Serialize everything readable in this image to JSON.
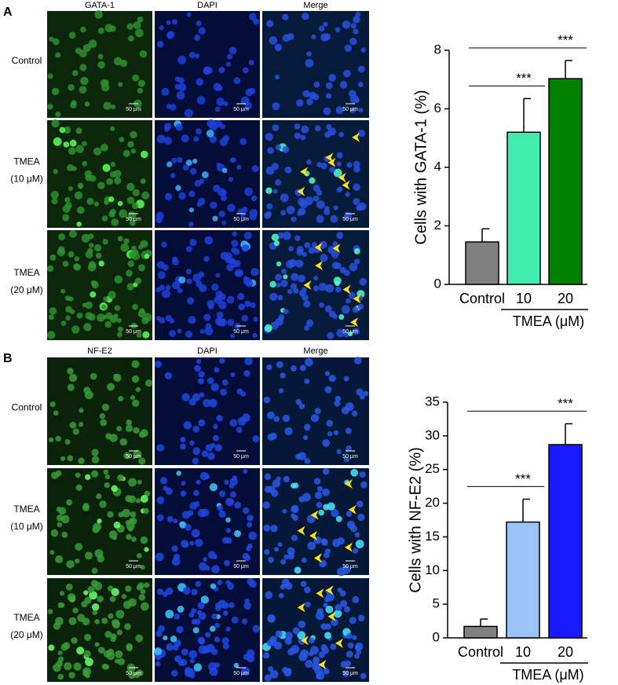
{
  "figure": {
    "panels": [
      {
        "letter": "A",
        "columns": [
          "GATA-1",
          "DAPI",
          "Merge"
        ],
        "rows": [
          [
            "Control"
          ],
          [
            "TMEA",
            "(10 μM)"
          ],
          [
            "TMEA",
            "(20 μM)"
          ]
        ],
        "scale_bar": "50 μm"
      },
      {
        "letter": "B",
        "columns": [
          "NF-E2",
          "DAPI",
          "Merge"
        ],
        "rows": [
          [
            "Control"
          ],
          [
            "TMEA",
            "(10 μM)"
          ],
          [
            "TMEA",
            "(20 μM)"
          ]
        ],
        "scale_bar": "50 μm"
      }
    ]
  },
  "chart_data": [
    {
      "type": "bar",
      "y_label": "Cells with GATA-1 (%)",
      "categories": [
        "Control",
        "10",
        "20"
      ],
      "group_label": "TMEA (μM)",
      "values": [
        1.45,
        5.2,
        7.03
      ],
      "errors": [
        0.45,
        1.15,
        0.62
      ],
      "colors": [
        "#808080",
        "#40ebb0",
        "#008000"
      ],
      "ylim": [
        0,
        8
      ],
      "yticks": [
        0,
        2,
        4,
        6,
        8
      ],
      "annotations": [
        "***",
        "***"
      ]
    },
    {
      "type": "bar",
      "y_label": "Cells with NF-E2 (%)",
      "categories": [
        "Control",
        "10",
        "20"
      ],
      "group_label": "TMEA (μM)",
      "values": [
        1.7,
        17.2,
        28.7
      ],
      "errors": [
        1.1,
        3.4,
        3.1
      ],
      "colors": [
        "#808080",
        "#9cc3f5",
        "#1a1aff"
      ],
      "ylim": [
        0,
        35
      ],
      "yticks": [
        0,
        5,
        10,
        15,
        20,
        25,
        30,
        35
      ],
      "annotations": [
        "***",
        "***"
      ]
    }
  ]
}
